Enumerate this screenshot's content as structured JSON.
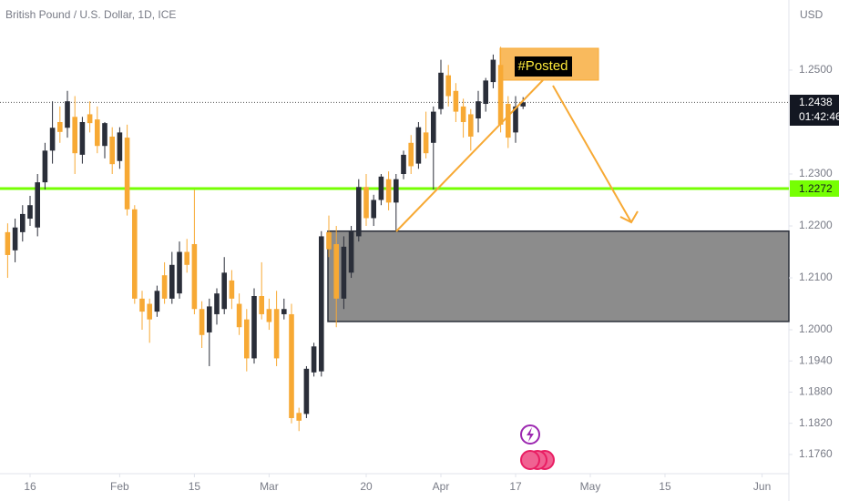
{
  "chart_data": {
    "type": "candlestick",
    "title": "British Pound / U.S. Dollar, 1D, ICE",
    "currency": "USD",
    "open": [
      1.2188,
      1.2153,
      1.2188,
      1.2214,
      1.2197,
      1.2284,
      1.2345,
      1.24,
      1.2389,
      1.241,
      1.2337,
      1.2415,
      1.2405,
      1.2354,
      1.2372,
      1.2325,
      1.237,
      1.2232,
      1.206,
      1.205,
      1.2035,
      1.2105,
      1.206,
      1.207,
      1.215,
      1.2165,
      1.204,
      1.1995,
      1.203,
      1.204,
      1.2095,
      1.205,
      1.202,
      1.1945,
      1.2065,
      1.204,
      1.204,
      1.203,
      1.203,
      1.184,
      1.1838,
      1.1918,
      1.192,
      1.2188,
      1.2165,
      1.206,
      1.211,
      1.218,
      1.2275,
      1.2215,
      1.225,
      1.229,
      1.2245,
      1.23,
      1.236,
      1.232,
      1.238,
      1.236,
      1.2425,
      1.249,
      1.246,
      1.243,
      1.2415,
      1.2407,
      1.2435,
      1.2477,
      1.251,
      1.2435,
      1.238,
      1.243
    ],
    "high": [
      1.2205,
      1.2214,
      1.224,
      1.2258,
      1.23,
      1.236,
      1.244,
      1.243,
      1.246,
      1.245,
      1.241,
      1.244,
      1.243,
      1.24,
      1.239,
      1.239,
      1.2395,
      1.224,
      1.2075,
      1.206,
      1.2085,
      1.213,
      1.215,
      1.217,
      1.2175,
      1.227,
      1.2055,
      1.206,
      1.208,
      1.214,
      1.2115,
      1.207,
      1.204,
      1.208,
      1.213,
      1.206,
      1.2075,
      1.206,
      1.205,
      1.185,
      1.193,
      1.1975,
      1.219,
      1.222,
      1.22,
      1.218,
      1.22,
      1.229,
      1.23,
      1.226,
      1.23,
      1.2305,
      1.23,
      1.2345,
      1.2375,
      1.24,
      1.242,
      1.243,
      1.252,
      1.251,
      1.2475,
      1.2445,
      1.2425,
      1.246,
      1.2485,
      1.253,
      1.2545,
      1.245,
      1.245,
      1.2448
    ],
    "low": [
      1.21,
      1.213,
      1.217,
      1.22,
      1.218,
      1.227,
      1.232,
      1.236,
      1.237,
      1.23,
      1.232,
      1.238,
      1.234,
      1.233,
      1.23,
      1.231,
      1.222,
      1.205,
      1.2,
      1.1975,
      1.2025,
      1.205,
      1.205,
      1.206,
      1.211,
      1.203,
      1.1965,
      1.193,
      1.201,
      1.203,
      1.204,
      1.199,
      1.192,
      1.1935,
      1.202,
      1.2,
      1.193,
      1.202,
      1.182,
      1.1805,
      1.183,
      1.191,
      1.191,
      1.214,
      1.2005,
      1.204,
      1.21,
      1.217,
      1.22,
      1.22,
      1.224,
      1.223,
      1.219,
      1.229,
      1.23,
      1.231,
      1.233,
      1.227,
      1.2415,
      1.243,
      1.24,
      1.237,
      1.2345,
      1.238,
      1.242,
      1.2465,
      1.238,
      1.235,
      1.236,
      1.2425
    ],
    "close": [
      1.2144,
      1.2197,
      1.2223,
      1.224,
      1.2284,
      1.2345,
      1.2389,
      1.2381,
      1.244,
      1.234,
      1.24,
      1.2398,
      1.2354,
      1.2398,
      1.2319,
      1.238,
      1.2232,
      1.206,
      1.2035,
      1.202,
      1.2075,
      1.206,
      1.2125,
      1.215,
      1.2125,
      1.204,
      1.199,
      1.2045,
      1.207,
      1.211,
      1.206,
      1.2005,
      1.1945,
      1.2065,
      1.203,
      1.2015,
      1.1945,
      1.204,
      1.183,
      1.1825,
      1.1925,
      1.1968,
      1.218,
      1.2155,
      1.206,
      1.216,
      1.219,
      1.2275,
      1.2215,
      1.225,
      1.2295,
      1.2245,
      1.229,
      1.2337,
      1.2315,
      1.239,
      1.234,
      1.242,
      1.2495,
      1.245,
      1.242,
      1.24,
      1.2372,
      1.244,
      1.248,
      1.252,
      1.2395,
      1.237,
      1.243,
      1.2438
    ],
    "up_color": "#2a2e39",
    "down_color": "#f7a934",
    "ylim": [
      1.1723,
      1.2635
    ],
    "yticks": [
      {
        "value": 1.25,
        "label": "1.2500"
      },
      {
        "value": 1.23,
        "label": "1.2300"
      },
      {
        "value": 1.22,
        "label": "1.2200"
      },
      {
        "value": 1.21,
        "label": "1.2100"
      },
      {
        "value": 1.2,
        "label": "1.2000"
      },
      {
        "value": 1.194,
        "label": "1.1940"
      },
      {
        "value": 1.188,
        "label": "1.1880"
      },
      {
        "value": 1.182,
        "label": "1.1820"
      },
      {
        "value": 1.176,
        "label": "1.1760"
      }
    ],
    "xticks": [
      {
        "value": 3,
        "label": "16"
      },
      {
        "value": 15,
        "label": "Feb"
      },
      {
        "value": 25,
        "label": "15"
      },
      {
        "value": 35,
        "label": "Mar"
      },
      {
        "value": 48,
        "label": "20"
      },
      {
        "value": 58,
        "label": "Apr"
      },
      {
        "value": 68,
        "label": "17"
      },
      {
        "value": 78,
        "label": "May"
      },
      {
        "value": 88,
        "label": "15"
      },
      {
        "value": 101,
        "label": "Jun"
      }
    ],
    "grid": false,
    "last_price": 1.2438,
    "countdown": "01:42:46",
    "level": {
      "value": 1.2272,
      "color": "#76ff03"
    },
    "zone": {
      "top": 1.219,
      "bottom": 1.2016
    },
    "annotation": "#Posted"
  }
}
